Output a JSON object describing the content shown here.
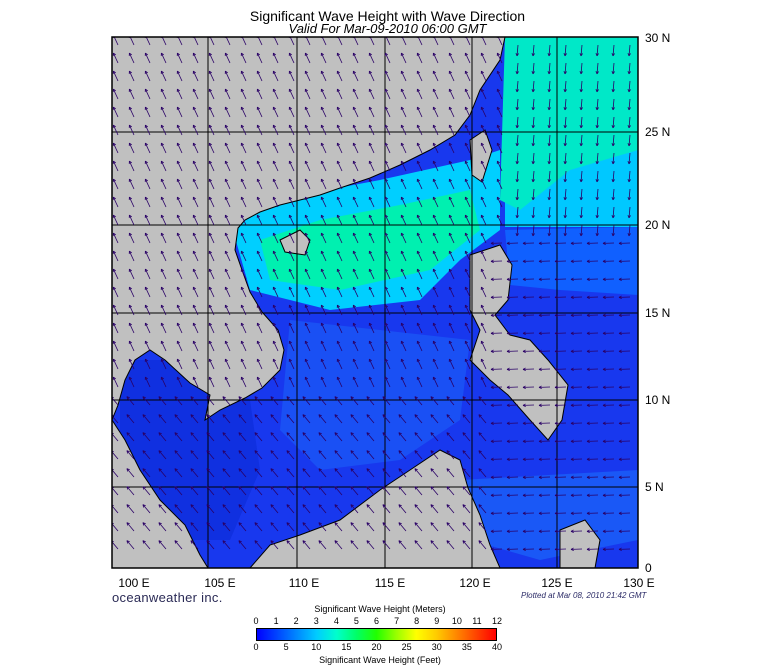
{
  "title": "Significant Wave Height with Wave Direction",
  "subtitle": "Valid For Mar-09-2010 06:00 GMT",
  "longitude_labels": [
    "100 E",
    "105 E",
    "110 E",
    "115 E",
    "120 E",
    "125 E",
    "130 E"
  ],
  "latitude_labels": [
    "30 N",
    "25 N",
    "20 N",
    "15 N",
    "10 N",
    "5 N",
    "0"
  ],
  "brand": "oceanweather inc.",
  "plotted_at": "Plotted at Mar 08, 2010 21:42 GMT",
  "colorbar": {
    "title_meters": "Significant Wave Height (Meters)",
    "title_feet": "Significant Wave Height (Feet)",
    "meter_ticks": [
      "0",
      "1",
      "2",
      "3",
      "4",
      "5",
      "6",
      "7",
      "8",
      "9",
      "10",
      "11",
      "12"
    ],
    "feet_ticks": [
      "0",
      "5",
      "10",
      "15",
      "20",
      "25",
      "30",
      "35",
      "40"
    ],
    "colors": [
      "#0000ff",
      "#0044ff",
      "#0088ff",
      "#00ccff",
      "#00ffcc",
      "#00ff66",
      "#22ff00",
      "#99ff00",
      "#ffff00",
      "#ffcc00",
      "#ff8800",
      "#ff4400",
      "#ff0000"
    ]
  },
  "colors": {
    "land": "#c0c0c0",
    "ocean_low": "#1030e8",
    "ocean_mid": "#0090ff",
    "ocean_high": "#00ff99",
    "arrow": "#2a0066"
  }
}
